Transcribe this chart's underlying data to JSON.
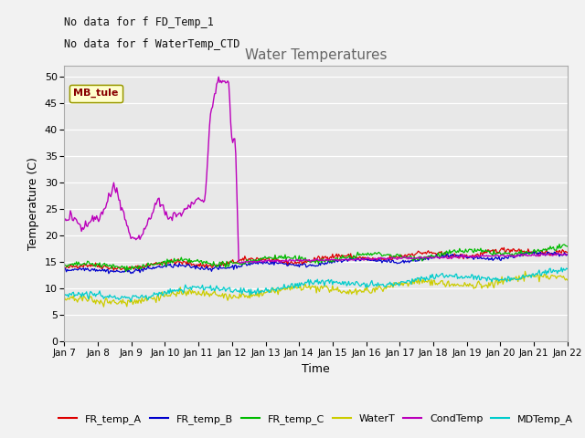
{
  "title": "Water Temperatures",
  "xlabel": "Time",
  "ylabel": "Temperature (C)",
  "annotation_lines": [
    "No data for f FD_Temp_1",
    "No data for f WaterTemp_CTD"
  ],
  "legend_label": "MB_tule",
  "ylim": [
    0,
    52
  ],
  "xlim": [
    0,
    15
  ],
  "xtick_labels": [
    "Jan 7",
    "Jan 8",
    "Jan 9",
    "Jan 10",
    "Jan 11",
    "Jan 12",
    "Jan 13",
    "Jan 14",
    "Jan 15",
    "Jan 16",
    "Jan 17",
    "Jan 18",
    "Jan 19",
    "Jan 20",
    "Jan 21",
    "Jan 22"
  ],
  "series_colors": {
    "FR_temp_A": "#dd0000",
    "FR_temp_B": "#0000cc",
    "FR_temp_C": "#00bb00",
    "WaterT": "#cccc00",
    "CondTemp": "#bb00bb",
    "MDTemp_A": "#00cccc"
  },
  "bg_color": "#e8e8e8",
  "title_color": "#666666",
  "annotation_color": "#111111",
  "n_points": 500,
  "seed": 42
}
